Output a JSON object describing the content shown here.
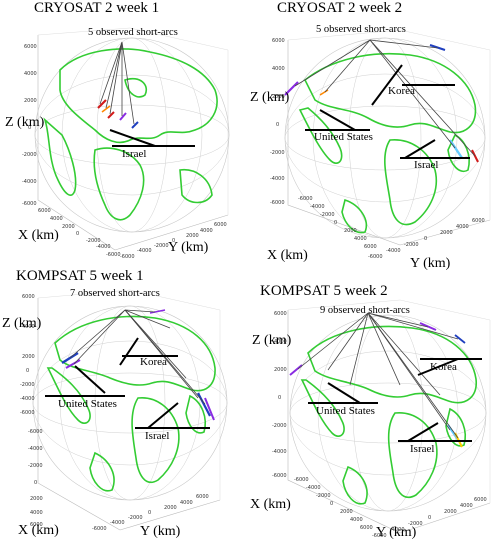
{
  "panels": [
    {
      "title": "CRYOSAT 2 week 1",
      "arcs_label": "5 observed short-arcs",
      "xlabel": "X (km)",
      "ylabel": "Y (km)",
      "zlabel": "Z (km)",
      "places": [
        "Israel"
      ]
    },
    {
      "title": "CRYOSAT 2 week 2",
      "arcs_label": "5 observed short-arcs",
      "xlabel": "X (km)",
      "ylabel": "Y (km)",
      "zlabel": "Z (km)",
      "places": [
        "Korea",
        "United States",
        "Israel"
      ]
    },
    {
      "title": "KOMPSAT 5 week 1",
      "arcs_label": "7 observed short-arcs",
      "xlabel": "X (km)",
      "ylabel": "Y (km)",
      "zlabel": "Z (km)",
      "places": [
        "Korea",
        "United States",
        "Israel"
      ]
    },
    {
      "title": "KOMPSAT 5 week 2",
      "arcs_label": "9 observed short-arcs",
      "xlabel": "X (km)",
      "ylabel": "Y (km)",
      "zlabel": "Z (km)",
      "places": [
        "Korea",
        "United States",
        "Israel"
      ]
    }
  ],
  "ticks": {
    "p1_z": [
      "6000",
      "4000",
      "2000",
      "0",
      "-2000",
      "-4000",
      "-6000"
    ],
    "p1_x": [
      "6000",
      "4000",
      "2000",
      "0",
      "-2000",
      "-4000",
      "-6000"
    ],
    "p1_y": [
      "-6000",
      "-4000",
      "-2000",
      "0",
      "2000",
      "4000",
      "6000"
    ],
    "p2_z": [
      "6000",
      "4000",
      "2000",
      "0",
      "-2000",
      "-4000",
      "-6000"
    ],
    "p2_x": [
      "-6000",
      "-4000",
      "-2000",
      "0",
      "2000",
      "4000",
      "6000"
    ],
    "p2_y": [
      "-6000",
      "-4000",
      "-2000",
      "0",
      "2000",
      "4000",
      "6000"
    ],
    "p3_z": [
      "6000",
      "4000",
      "2000",
      "0",
      "-2000",
      "-4000",
      "-6000"
    ],
    "p3_x": [
      "-6000",
      "-4000",
      "-2000",
      "0",
      "2000",
      "4000",
      "6000"
    ],
    "p3_y": [
      "-6000",
      "-4000",
      "-2000",
      "0",
      "2000",
      "4000",
      "6000"
    ],
    "p4_z": [
      "6000",
      "4000",
      "2000",
      "0",
      "-2000",
      "-4000",
      "-6000"
    ],
    "p4_x": [
      "-6000",
      "-4000",
      "-2000",
      "0",
      "2000",
      "4000",
      "6000"
    ],
    "p4_y": [
      "-6000",
      "-4000",
      "-2000",
      "0",
      "2000",
      "4000",
      "6000"
    ]
  },
  "colors": {
    "continents": "#33cc33",
    "grid": "#c8c8c8",
    "arc_purple": "#8a2be2",
    "arc_blue": "#1f3fbf",
    "arc_cyan": "#66ccff",
    "arc_red": "#d11b1b",
    "arc_magenta": "#cc33cc"
  }
}
